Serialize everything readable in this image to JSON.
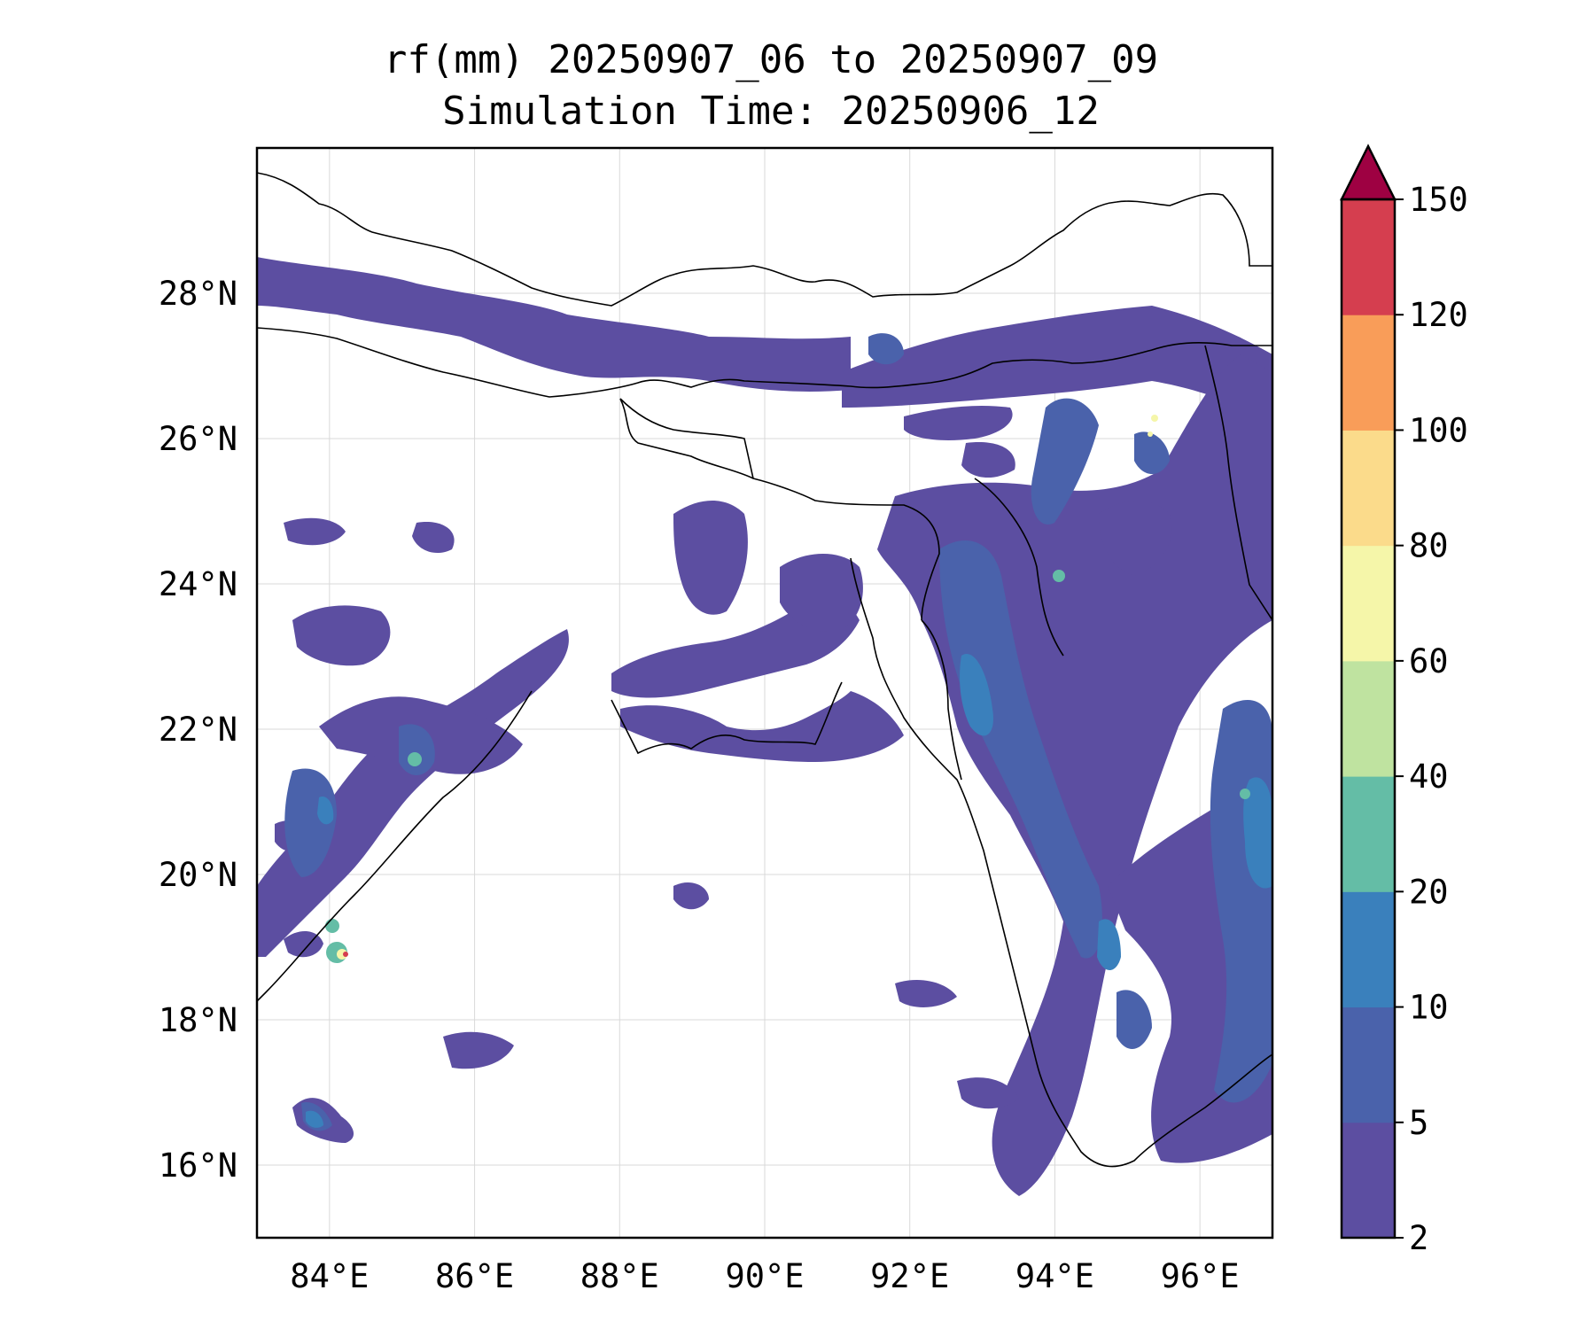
{
  "title": {
    "line1": "rf(mm) 20250907_06 to 20250907_09",
    "line2": "Simulation Time: 20250906_12"
  },
  "map": {
    "lon_range": [
      83.0,
      97.0
    ],
    "lat_range": [
      15.0,
      30.0
    ],
    "lon_ticks": [
      "84°E",
      "86°E",
      "88°E",
      "90°E",
      "92°E",
      "94°E",
      "96°E"
    ],
    "lat_ticks": [
      "16°N",
      "18°N",
      "20°N",
      "22°N",
      "24°N",
      "26°N",
      "28°N"
    ],
    "gridlines": true,
    "rain_fill_colors": [
      "#5c4ea1",
      "#4a62ab",
      "#3a80bc",
      "#64bda6"
    ],
    "hotspot_colors": [
      "#f5f6a9",
      "#d53e4f"
    ],
    "boundary_color": "#000000"
  },
  "colorbar": {
    "ticks": [
      "2",
      "5",
      "10",
      "20",
      "40",
      "60",
      "80",
      "100",
      "120",
      "150"
    ],
    "colors": [
      "#5c4ea1",
      "#4a62ab",
      "#3a80bc",
      "#64bda6",
      "#bfe3a0",
      "#f5f6a9",
      "#fbdb8b",
      "#f99d59",
      "#d53e4f"
    ],
    "extend_color": "#9e0142",
    "extend": "max"
  }
}
